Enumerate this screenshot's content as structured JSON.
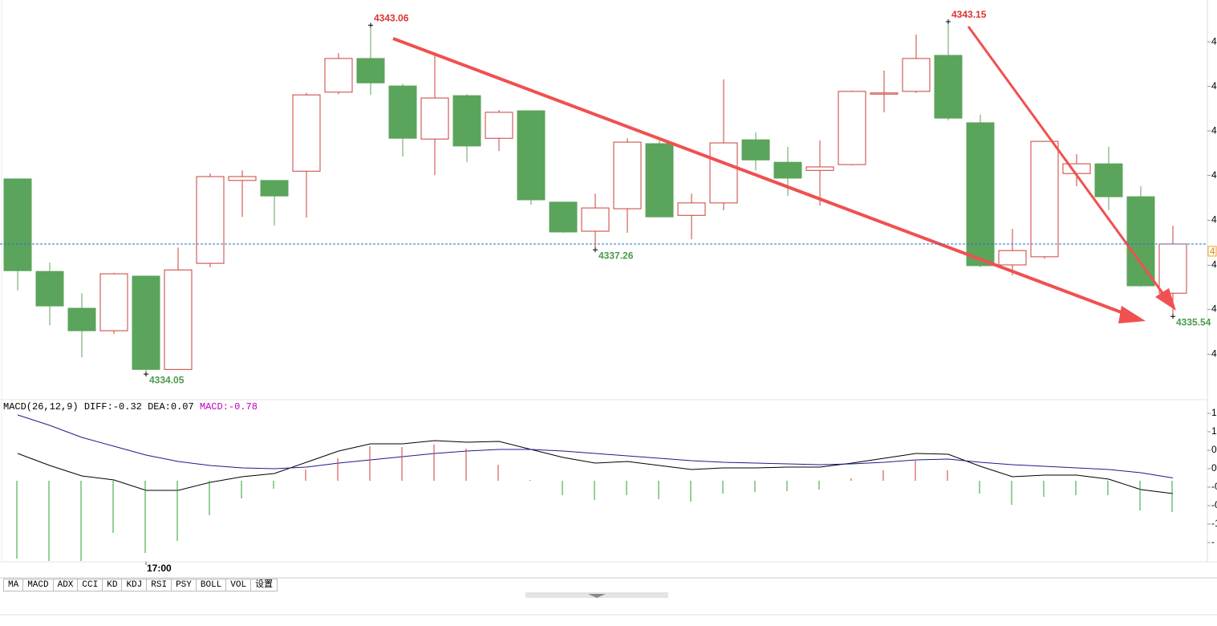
{
  "chart_data": {
    "type": "candlestick",
    "categories": [
      null,
      null,
      null,
      null,
      "17:00",
      null,
      null,
      null,
      null,
      null,
      null,
      null,
      null,
      null,
      null,
      null,
      null,
      null,
      null,
      null,
      null,
      null,
      null,
      null,
      null,
      null,
      null,
      null,
      null,
      null,
      null,
      null,
      null,
      null,
      null,
      null,
      null
    ],
    "open": [
      4339.09,
      4336.7,
      4335.75,
      4335.17,
      4336.58,
      4334.17,
      4336.91,
      4339.05,
      4339.05,
      4339.29,
      4341.33,
      4342.2,
      4341.49,
      4340.12,
      4341.24,
      4340.14,
      4340.85,
      4338.49,
      4337.74,
      4338.32,
      4340.0,
      4338.15,
      4338.47,
      4340.1,
      4339.52,
      4339.31,
      4339.46,
      4341.28,
      4341.35,
      4342.28,
      4340.54,
      4336.87,
      4337.08,
      4339.23,
      4339.48,
      4338.63,
      4336.14
    ],
    "high": [
      4339.09,
      4336.93,
      4336.14,
      4336.66,
      4336.58,
      4337.32,
      4339.23,
      4339.31,
      4339.05,
      4341.31,
      4342.34,
      4343.06,
      4341.55,
      4342.34,
      4341.28,
      4340.87,
      4340.85,
      4338.49,
      4338.71,
      4340.14,
      4340.08,
      4338.71,
      4341.66,
      4340.29,
      4339.92,
      4340.08,
      4341.37,
      4341.89,
      4342.82,
      4343.15,
      4340.75,
      4337.8,
      4340.06,
      4339.73,
      4339.92,
      4338.9,
      4337.88
    ],
    "low": [
      4336.21,
      4335.31,
      4334.48,
      4335.09,
      4334.05,
      4334.17,
      4336.81,
      4338.11,
      4337.88,
      4338.09,
      4341.28,
      4341.26,
      4339.67,
      4339.19,
      4339.52,
      4339.81,
      4338.42,
      4337.7,
      4337.26,
      4337.7,
      4338.11,
      4337.53,
      4338.28,
      4339.31,
      4338.65,
      4338.4,
      4339.44,
      4340.81,
      4341.31,
      4340.6,
      4336.81,
      4336.6,
      4337.03,
      4338.9,
      4338.28,
      4336.31,
      4335.54
    ],
    "close": [
      4336.72,
      4335.81,
      4335.17,
      4336.64,
      4334.17,
      4336.74,
      4339.15,
      4339.15,
      4338.65,
      4341.26,
      4342.2,
      4341.57,
      4340.14,
      4341.18,
      4339.94,
      4340.81,
      4338.55,
      4337.72,
      4338.34,
      4340.04,
      4338.11,
      4338.47,
      4340.02,
      4339.58,
      4339.11,
      4339.4,
      4341.35,
      4341.31,
      4342.2,
      4340.66,
      4336.85,
      4337.24,
      4340.06,
      4339.48,
      4338.63,
      4336.33,
      4337.41
    ],
    "up_color": "#c8413a",
    "down_color": "#5ba45b",
    "ylim": [
      4333.41,
      4343.71
    ],
    "yticks": [
      {
        "value": 4342.63,
        "label": "4"
      },
      {
        "value": 4341.48,
        "label": "4"
      },
      {
        "value": 4340.33,
        "label": "4"
      },
      {
        "value": 4339.18,
        "label": "4"
      },
      {
        "value": 4338.02,
        "label": "4"
      },
      {
        "value": 4336.86,
        "label": "4"
      },
      {
        "value": 4335.72,
        "label": "4"
      },
      {
        "value": 4334.56,
        "label": "4"
      }
    ],
    "last_price_label": "4",
    "indicator": {
      "title": "MACD(26,12,9)",
      "y2lim": [
        -2.02,
        1.98
      ],
      "y2ticks": [
        {
          "value": 1.68,
          "label": "1"
        },
        {
          "value": 1.22,
          "label": "1"
        },
        {
          "value": 0.76,
          "label": "0"
        },
        {
          "value": 0.3,
          "label": "0"
        },
        {
          "value": -0.16,
          "label": "-0"
        },
        {
          "value": -0.62,
          "label": "-0"
        },
        {
          "value": -1.08,
          "label": "-1"
        },
        {
          "value": -1.54,
          "label": "-"
        }
      ],
      "series": [
        {
          "name": "DIFF:",
          "type": "line",
          "color": "#000000",
          "values": [
            0.68,
            0.38,
            0.12,
            0.02,
            -0.24,
            -0.24,
            -0.04,
            0.1,
            0.18,
            0.46,
            0.74,
            0.92,
            0.92,
            1.0,
            0.96,
            0.98,
            0.78,
            0.58,
            0.44,
            0.48,
            0.38,
            0.28,
            0.32,
            0.32,
            0.34,
            0.34,
            0.44,
            0.56,
            0.68,
            0.66,
            0.36,
            0.1,
            0.14,
            0.14,
            0.04,
            -0.22,
            -0.32
          ]
        },
        {
          "name": "DEA:",
          "type": "line",
          "color": "#1c1c8a",
          "values": [
            1.64,
            1.38,
            1.08,
            0.86,
            0.64,
            0.48,
            0.38,
            0.32,
            0.3,
            0.34,
            0.44,
            0.52,
            0.6,
            0.68,
            0.74,
            0.78,
            0.78,
            0.74,
            0.68,
            0.62,
            0.56,
            0.5,
            0.46,
            0.44,
            0.42,
            0.4,
            0.42,
            0.46,
            0.52,
            0.54,
            0.46,
            0.4,
            0.36,
            0.32,
            0.28,
            0.2,
            0.07
          ]
        },
        {
          "name": "MACD:",
          "type": "bar",
          "color": "#c000c0",
          "up_color": "#d23a3a",
          "down_color": "#2aa02a",
          "values": [
            -1.94,
            -2.0,
            -2.0,
            -1.3,
            -1.8,
            -1.5,
            -0.86,
            -0.44,
            -0.2,
            0.28,
            0.56,
            0.86,
            0.84,
            0.9,
            0.8,
            0.4,
            0.02,
            -0.36,
            -0.48,
            -0.36,
            -0.46,
            -0.52,
            -0.32,
            -0.28,
            -0.26,
            -0.22,
            0.06,
            0.26,
            0.5,
            0.26,
            -0.32,
            -0.6,
            -0.4,
            -0.36,
            -0.36,
            -0.74,
            -0.78
          ]
        }
      ]
    }
  },
  "tabs": [
    "MA",
    "MACD",
    "ADX",
    "CCI",
    "KD",
    "KDJ",
    "RSI",
    "PSY",
    "BOLL",
    "VOL",
    "设置"
  ]
}
